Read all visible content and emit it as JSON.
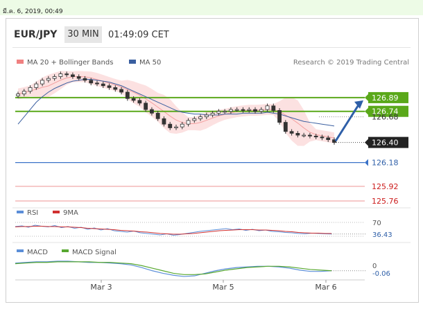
{
  "header": {
    "date": "มี.ค. 6, 2019, 00:49",
    "symbol": "EUR/JPY",
    "timeframe": "30 MIN",
    "time": "01:49:09 CET"
  },
  "chart_data": [
    {
      "type": "candlestick",
      "panel": "price",
      "legend": [
        {
          "name": "MA 20 + Bollinger Bands",
          "color": "#f08080"
        },
        {
          "name": "MA 50",
          "color": "#3a5fa0"
        }
      ],
      "credit": "Research © 2019 Trading Central",
      "x_ticks": [
        "Mar 3",
        "Mar 5",
        "Mar 6"
      ],
      "ylim": [
        125.7,
        127.2
      ],
      "series": [
        {
          "name": "Close",
          "values": [
            126.93,
            126.96,
            127.0,
            127.04,
            127.08,
            127.1,
            127.12,
            127.15,
            127.14,
            127.12,
            127.1,
            127.08,
            127.05,
            127.04,
            127.02,
            127.0,
            126.98,
            126.95,
            126.88,
            126.86,
            126.83,
            126.76,
            126.72,
            126.66,
            126.6,
            126.56,
            126.57,
            126.6,
            126.64,
            126.66,
            126.68,
            126.7,
            126.72,
            126.74,
            126.74,
            126.76,
            126.76,
            126.75,
            126.76,
            126.74,
            126.76,
            126.8,
            126.75,
            126.62,
            126.52,
            126.5,
            126.48,
            126.48,
            126.47,
            126.46,
            126.45,
            126.43,
            126.4
          ]
        },
        {
          "name": "MA 50",
          "values": [
            126.6,
            126.68,
            126.76,
            126.84,
            126.9,
            126.95,
            126.99,
            127.02,
            127.05,
            127.07,
            127.08,
            127.09,
            127.09,
            127.08,
            127.07,
            127.06,
            127.04,
            127.02,
            126.99,
            126.96,
            126.93,
            126.9,
            126.87,
            126.84,
            126.81,
            126.78,
            126.75,
            126.73,
            126.72,
            126.71,
            126.71,
            126.7,
            126.7,
            126.7,
            126.71,
            126.71,
            126.71,
            126.72,
            126.72,
            126.72,
            126.72,
            126.73,
            126.72,
            126.71,
            126.69,
            126.67,
            126.65,
            126.63,
            126.62,
            126.61,
            126.6,
            126.59,
            126.58
          ]
        }
      ],
      "levels": [
        {
          "label": "126.89",
          "value": 126.89,
          "style": "green-box"
        },
        {
          "label": "126.74",
          "value": 126.74,
          "style": "green-box"
        },
        {
          "label": "126.68",
          "value": 126.68,
          "style": "plain"
        },
        {
          "label": "126.40",
          "value": 126.4,
          "style": "dark-box"
        },
        {
          "label": "126.18",
          "value": 126.18,
          "style": "blue-box"
        },
        {
          "label": "125.92",
          "value": 125.92,
          "style": "red-text"
        },
        {
          "label": "125.76",
          "value": 125.76,
          "style": "red-text"
        }
      ]
    },
    {
      "type": "line",
      "panel": "rsi",
      "legend": [
        {
          "name": "RSI",
          "color": "#5b8ed8"
        },
        {
          "name": "9MA",
          "color": "#d03030"
        }
      ],
      "ylim": [
        20,
        80
      ],
      "levels": [
        {
          "label": "70",
          "value": 70
        },
        {
          "label": "36.43",
          "value": 36.43
        }
      ],
      "series": [
        {
          "name": "RSI",
          "values": [
            58,
            60,
            56,
            62,
            59,
            57,
            61,
            55,
            58,
            53,
            56,
            50,
            54,
            48,
            52,
            46,
            44,
            42,
            45,
            40,
            38,
            36,
            34,
            37,
            33,
            35,
            38,
            41,
            44,
            46,
            48,
            50,
            52,
            49,
            51,
            47,
            50,
            46,
            48,
            44,
            43,
            41,
            40,
            38,
            37,
            39,
            38,
            37,
            36.43
          ]
        },
        {
          "name": "9MA",
          "values": [
            57,
            58,
            58,
            59,
            59,
            58,
            58,
            57,
            57,
            56,
            55,
            53,
            52,
            51,
            50,
            49,
            47,
            46,
            45,
            43,
            42,
            40,
            38,
            37,
            36,
            36,
            37,
            38,
            40,
            42,
            44,
            46,
            47,
            48,
            49,
            49,
            49,
            48,
            48,
            47,
            46,
            44,
            43,
            41,
            40,
            39,
            39,
            38,
            38
          ]
        }
      ]
    },
    {
      "type": "line",
      "panel": "macd",
      "legend": [
        {
          "name": "MACD",
          "color": "#5b8ed8"
        },
        {
          "name": "MACD Signal",
          "color": "#58a830"
        }
      ],
      "levels": [
        {
          "label": "0",
          "value": 0
        },
        {
          "label": "-0.06",
          "value": -0.06
        }
      ],
      "series": [
        {
          "name": "MACD",
          "values": [
            0.06,
            0.07,
            0.08,
            0.08,
            0.09,
            0.09,
            0.08,
            0.07,
            0.07,
            0.06,
            0.05,
            0.03,
            -0.01,
            -0.06,
            -0.1,
            -0.13,
            -0.15,
            -0.14,
            -0.1,
            -0.06,
            -0.03,
            -0.01,
            0.0,
            0.01,
            0.01,
            0.0,
            -0.02,
            -0.05,
            -0.07,
            -0.07,
            -0.06
          ]
        },
        {
          "name": "MACD Signal",
          "values": [
            0.05,
            0.06,
            0.07,
            0.07,
            0.08,
            0.08,
            0.08,
            0.08,
            0.07,
            0.07,
            0.06,
            0.05,
            0.02,
            -0.02,
            -0.06,
            -0.1,
            -0.12,
            -0.12,
            -0.11,
            -0.08,
            -0.05,
            -0.03,
            -0.01,
            0.0,
            0.01,
            0.01,
            0.0,
            -0.02,
            -0.04,
            -0.05,
            -0.06
          ]
        }
      ]
    }
  ]
}
